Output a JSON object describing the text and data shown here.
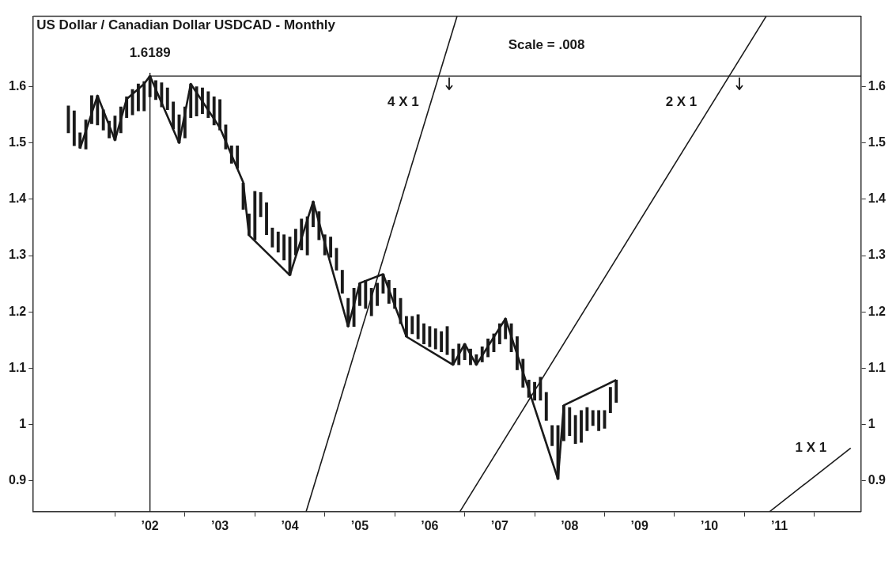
{
  "chart_data": {
    "type": "bar",
    "title": "US Dollar / Canadian Dollar USDCAD - Monthly",
    "annotations": [
      "Scale = .008"
    ],
    "xlim": [
      "2000-05",
      "2012-03"
    ],
    "xticks": [
      {
        "value": "2002",
        "label": "’02"
      },
      {
        "value": "2003",
        "label": "’03"
      },
      {
        "value": "2004",
        "label": "’04"
      },
      {
        "value": "2005",
        "label": "’05"
      },
      {
        "value": "2006",
        "label": "’06"
      },
      {
        "value": "2007",
        "label": "’07"
      },
      {
        "value": "2008",
        "label": "’08"
      },
      {
        "value": "2009",
        "label": "’09"
      },
      {
        "value": "2010",
        "label": "’10"
      },
      {
        "value": "2011",
        "label": "’11"
      }
    ],
    "ylim": [
      0.845,
      1.725
    ],
    "yticks": [
      0.9,
      1,
      1.1,
      1.2,
      1.3,
      1.4,
      1.5,
      1.6
    ],
    "y2lim": [
      0.845,
      1.725
    ],
    "y2ticks": [
      0.9,
      1,
      1.1,
      1.2,
      1.3,
      1.4,
      1.5,
      1.6
    ],
    "legend": false,
    "ref_lines": [
      {
        "axis": "x",
        "value": "2002-01",
        "color": "#1a1a1a"
      },
      {
        "axis": "y",
        "value": 1.6189,
        "label": "1.6189",
        "color": "#1a1a1a"
      }
    ],
    "series": [
      {
        "color": "#1a1a1a",
        "x": [
          "2000-11",
          "2000-12",
          "2001-01",
          "2001-02",
          "2001-03",
          "2001-04",
          "2001-05",
          "2001-06",
          "2001-07",
          "2001-08",
          "2001-09",
          "2001-10",
          "2001-11",
          "2001-12",
          "2002-01",
          "2002-02",
          "2002-03",
          "2002-04",
          "2002-05",
          "2002-06",
          "2002-07",
          "2002-08",
          "2002-09",
          "2002-10",
          "2002-11",
          "2002-12",
          "2003-01",
          "2003-02",
          "2003-03",
          "2003-04",
          "2003-05",
          "2003-06",
          "2003-07",
          "2003-08",
          "2003-09",
          "2003-10",
          "2003-11",
          "2003-12",
          "2004-01",
          "2004-02",
          "2004-03",
          "2004-04",
          "2004-05",
          "2004-06",
          "2004-07",
          "2004-08",
          "2004-09",
          "2004-10",
          "2004-11",
          "2004-12",
          "2005-01",
          "2005-02",
          "2005-03",
          "2005-04",
          "2005-05",
          "2005-06",
          "2005-07",
          "2005-08",
          "2005-09",
          "2005-10",
          "2005-11",
          "2005-12",
          "2006-01",
          "2006-02",
          "2006-03",
          "2006-04",
          "2006-05",
          "2006-06",
          "2006-07",
          "2006-08",
          "2006-09",
          "2006-10",
          "2006-11",
          "2006-12",
          "2007-01",
          "2007-02",
          "2007-03",
          "2007-04",
          "2007-05",
          "2007-06",
          "2007-07",
          "2007-08",
          "2007-09",
          "2007-10",
          "2007-11",
          "2007-12",
          "2008-01",
          "2008-02",
          "2008-03",
          "2008-04",
          "2008-05",
          "2008-06",
          "2008-07",
          "2008-08",
          "2008-09"
        ],
        "base": [
          1.518,
          1.495,
          1.491,
          1.489,
          1.534,
          1.532,
          1.523,
          1.509,
          1.505,
          1.518,
          1.545,
          1.55,
          1.557,
          1.557,
          1.582,
          1.577,
          1.564,
          1.559,
          1.525,
          1.5,
          1.509,
          1.545,
          1.548,
          1.552,
          1.545,
          1.532,
          1.523,
          1.489,
          1.464,
          1.455,
          1.382,
          1.336,
          1.328,
          1.369,
          1.337,
          1.315,
          1.306,
          1.292,
          1.265,
          1.301,
          1.31,
          1.301,
          1.351,
          1.328,
          1.301,
          1.297,
          1.274,
          1.233,
          1.174,
          1.174,
          1.211,
          1.206,
          1.193,
          1.211,
          1.233,
          1.215,
          1.206,
          1.179,
          1.156,
          1.161,
          1.152,
          1.143,
          1.138,
          1.134,
          1.129,
          1.124,
          1.106,
          1.106,
          1.115,
          1.106,
          1.106,
          1.111,
          1.12,
          1.129,
          1.143,
          1.152,
          1.129,
          1.097,
          1.066,
          1.048,
          1.043,
          1.043,
          1.007,
          0.962,
          0.903,
          0.971,
          0.98,
          0.966,
          0.968,
          0.989,
          0.998,
          0.989,
          0.993,
          1.021,
          1.039
        ],
        "values": [
          0.048,
          0.062,
          0.027,
          0.052,
          0.05,
          0.052,
          0.036,
          0.03,
          0.043,
          0.046,
          0.037,
          0.045,
          0.048,
          0.052,
          0.037,
          0.034,
          0.043,
          0.039,
          0.048,
          0.05,
          0.055,
          0.06,
          0.052,
          0.046,
          0.046,
          0.05,
          0.054,
          0.043,
          0.031,
          0.04,
          0.047,
          0.038,
          0.086,
          0.043,
          0.057,
          0.034,
          0.036,
          0.045,
          0.068,
          0.046,
          0.055,
          0.068,
          0.045,
          0.05,
          0.036,
          0.036,
          0.039,
          0.041,
          0.05,
          0.068,
          0.04,
          0.05,
          0.049,
          0.04,
          0.034,
          0.041,
          0.036,
          0.045,
          0.036,
          0.031,
          0.043,
          0.036,
          0.036,
          0.036,
          0.036,
          0.05,
          0.028,
          0.037,
          0.028,
          0.028,
          0.018,
          0.027,
          0.032,
          0.032,
          0.036,
          0.036,
          0.05,
          0.059,
          0.05,
          0.031,
          0.032,
          0.041,
          0.05,
          0.036,
          0.095,
          0.063,
          0.05,
          0.05,
          0.057,
          0.041,
          0.027,
          0.036,
          0.032,
          0.045,
          0.04
        ]
      },
      {
        "type": "line",
        "color": "#1a1a1a",
        "x": [
          "2001-01",
          "2001-04",
          "2001-07",
          "2001-09",
          "2001-12",
          "2002-01",
          "2002-06",
          "2002-08",
          "2003-01",
          "2003-05",
          "2003-06",
          "2004-01",
          "2004-05",
          "2004-11",
          "2005-01",
          "2005-05",
          "2005-09",
          "2006-05",
          "2006-07",
          "2006-09",
          "2007-02",
          "2007-11",
          "2007-12",
          "2008-09"
        ],
        "values": [
          1.49,
          1.584,
          1.505,
          1.578,
          1.605,
          1.619,
          1.5,
          1.605,
          1.527,
          1.43,
          1.336,
          1.265,
          1.396,
          1.174,
          1.251,
          1.267,
          1.156,
          1.106,
          1.143,
          1.106,
          1.188,
          0.903,
          1.034,
          1.079
        ]
      },
      {
        "type": "line",
        "name": "4 X 1",
        "color": "#1a1a1a",
        "x": [
          "2004-03-25",
          "2006-05-22"
        ],
        "values": [
          0.845,
          1.725
        ]
      },
      {
        "type": "line",
        "name": "2 X 1",
        "color": "#1a1a1a",
        "x": [
          "2006-06-06",
          "2010-10-23"
        ],
        "values": [
          0.845,
          1.725
        ]
      },
      {
        "type": "line",
        "name": "1 X 1",
        "color": "#1a1a1a",
        "x": [
          "2010-11-10",
          "2012-01-08"
        ],
        "values": [
          0.845,
          0.958
        ]
      }
    ]
  }
}
